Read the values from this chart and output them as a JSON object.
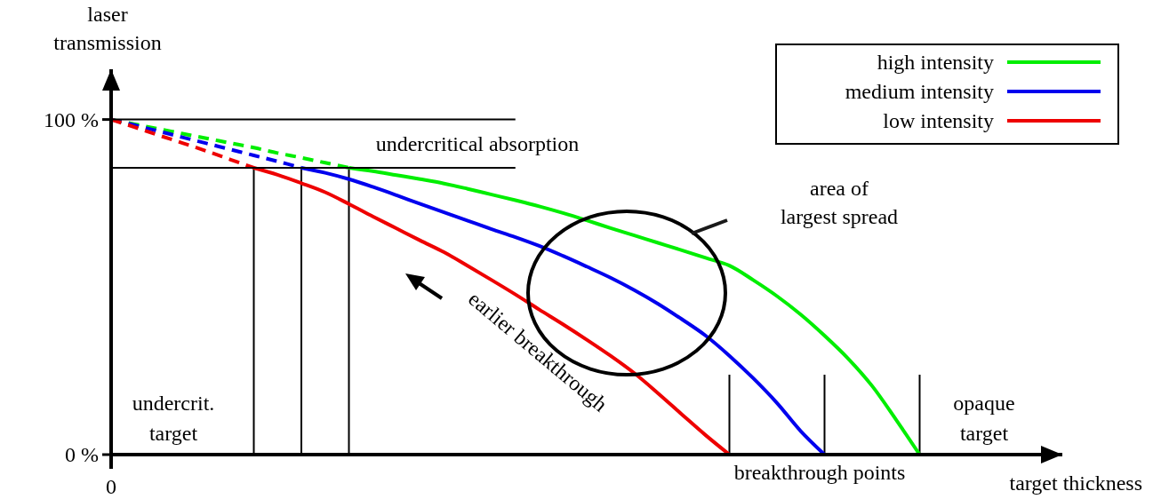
{
  "chart_data": {
    "type": "line",
    "xlabel": "target thickness",
    "ylabel": "laser transmission",
    "ylim": [
      0,
      115
    ],
    "yticks": [
      {
        "value": 0,
        "label": "0 %"
      },
      {
        "value": 100,
        "label": "100 %"
      }
    ],
    "grid": false,
    "legend": "top right",
    "marker": "none",
    "categories": [
      "0",
      null,
      null,
      null,
      null,
      null,
      null,
      null,
      null,
      null,
      null,
      null,
      null,
      null,
      null,
      null,
      null,
      null,
      null,
      null,
      null,
      null,
      null,
      null,
      null,
      null,
      null,
      null,
      null,
      null,
      null,
      null,
      null,
      null,
      null,
      null,
      null,
      null,
      null,
      null,
      null
    ],
    "series": [
      {
        "name": "high intensity",
        "color": "#00ee00",
        "line_style": "solid",
        "values": [
          null,
          null,
          null,
          null,
          null,
          null,
          null,
          null,
          null,
          null,
          85.6,
          84.6,
          83.4,
          82.2,
          80.9,
          79.3,
          77.6,
          75.9,
          74.1,
          72.1,
          69.9,
          67.6,
          65.4,
          63.2,
          61,
          58.7,
          56.4,
          52.1,
          47.3,
          41.8,
          35.5,
          28.6,
          20.5,
          10.5,
          0,
          null,
          null,
          null,
          null,
          null,
          null
        ]
      },
      {
        "name": "medium intensity",
        "color": "#0000ee",
        "line_style": "solid",
        "values": [
          null,
          null,
          null,
          null,
          null,
          null,
          null,
          null,
          85.6,
          84.1,
          82.2,
          79.9,
          77.4,
          74.8,
          72.3,
          69.8,
          67.3,
          64.9,
          62.3,
          59.3,
          56.1,
          52.8,
          49.1,
          45,
          40.4,
          35.5,
          29.5,
          22.8,
          15.4,
          7,
          0,
          null,
          null,
          null,
          null,
          null,
          null,
          null,
          null,
          null,
          null
        ]
      },
      {
        "name": "low intensity",
        "color": "#ee0000",
        "line_style": "solid",
        "values": [
          null,
          null,
          null,
          null,
          null,
          null,
          85.6,
          83.5,
          81,
          78.3,
          74.8,
          71.1,
          67.5,
          63.9,
          60.4,
          56.3,
          52.1,
          47.8,
          43.3,
          38.9,
          34.3,
          29.5,
          24.3,
          18.3,
          12,
          5.8,
          0,
          null,
          null,
          null,
          null,
          null,
          null,
          null,
          null,
          null,
          null,
          null,
          null,
          null,
          null
        ]
      },
      {
        "color": "#00ee00",
        "line_style": "dashed",
        "values": [
          100,
          98.6,
          97.2,
          95.8,
          94.4,
          93,
          91.6,
          90,
          88.6,
          87.1,
          85.6,
          null,
          null,
          null,
          null,
          null,
          null,
          null,
          null,
          null,
          null,
          null,
          null,
          null,
          null,
          null,
          null,
          null,
          null,
          null,
          null,
          null,
          null,
          null,
          null,
          null,
          null,
          null,
          null,
          null,
          null
        ]
      },
      {
        "color": "#0000ee",
        "line_style": "dashed",
        "values": [
          100,
          98.3,
          96.5,
          94.7,
          92.9,
          91.1,
          89.3,
          87.5,
          85.6,
          null,
          null,
          null,
          null,
          null,
          null,
          null,
          null,
          null,
          null,
          null,
          null,
          null,
          null,
          null,
          null,
          null,
          null,
          null,
          null,
          null,
          null,
          null,
          null,
          null,
          null,
          null,
          null,
          null,
          null,
          null,
          null
        ]
      },
      {
        "color": "#ee0000",
        "line_style": "dashed",
        "values": [
          100,
          97.7,
          95.3,
          93,
          90.6,
          88.1,
          85.6,
          null,
          null,
          null,
          null,
          null,
          null,
          null,
          null,
          null,
          null,
          null,
          null,
          null,
          null,
          null,
          null,
          null,
          null,
          null,
          null,
          null,
          null,
          null,
          null,
          null,
          null,
          null,
          null,
          null,
          null,
          null,
          null,
          null,
          null
        ]
      },
      {
        "color": "#000000",
        "line_style": "solid",
        "values": [
          100,
          100,
          100,
          100,
          100,
          100,
          100,
          100,
          100,
          100,
          100,
          100,
          100,
          100,
          100,
          100,
          100,
          100,
          null,
          null,
          null,
          null,
          null,
          null,
          null,
          null,
          null,
          null,
          null,
          null,
          null,
          null,
          null,
          null,
          null,
          null,
          null,
          null,
          null,
          null,
          null
        ]
      },
      {
        "color": "#000000",
        "line_style": "solid",
        "values": [
          85.6,
          85.6,
          85.6,
          85.6,
          85.6,
          85.6,
          85.6,
          85.6,
          85.6,
          85.6,
          85.6,
          85.6,
          85.6,
          85.6,
          85.6,
          85.6,
          85.6,
          85.6,
          null,
          null,
          null,
          null,
          null,
          null,
          null,
          null,
          null,
          null,
          null,
          null,
          null,
          null,
          null,
          null,
          null,
          null,
          null,
          null,
          null,
          null,
          null
        ]
      }
    ],
    "annotations": [
      "undercritical absorption",
      "area of largest spread",
      "earlier breakthrough",
      "undercrit. target",
      "opaque target",
      "breakthrough points"
    ]
  }
}
